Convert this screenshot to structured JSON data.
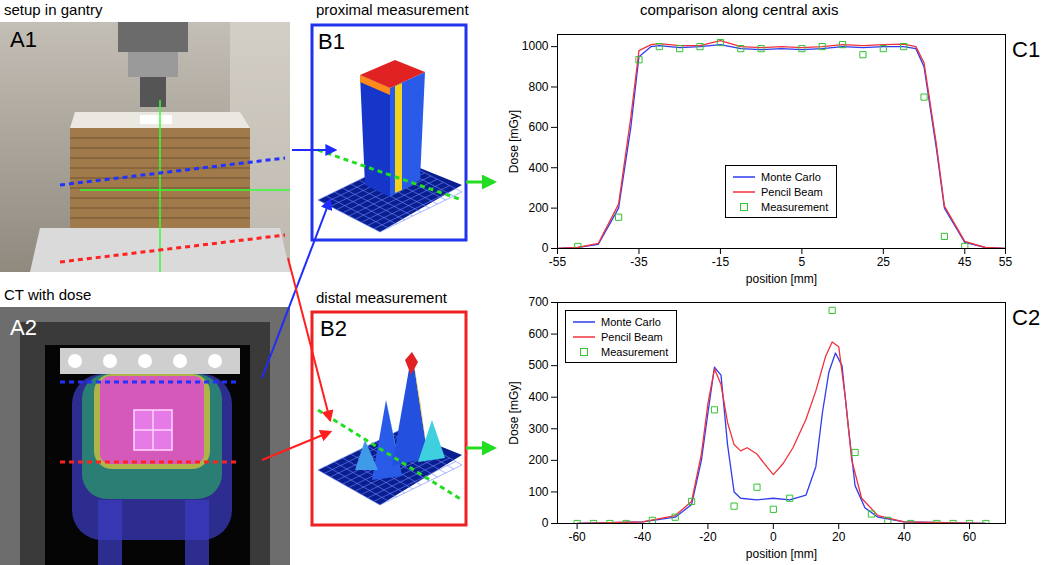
{
  "panels": {
    "A1": {
      "label": "A1",
      "title": "setup in gantry"
    },
    "A2": {
      "label": "A2",
      "title": "CT with dose"
    },
    "B1": {
      "label": "B1",
      "title": "proximal measurement"
    },
    "B2": {
      "label": "B2",
      "title": "distal measurement"
    },
    "C": {
      "title": "comparison along central axis"
    }
  },
  "chart_data": [
    {
      "label": "C1",
      "type": "line",
      "xlabel": "position [mm]",
      "ylabel": "Dose [mGy]",
      "xlim": [
        -55,
        55
      ],
      "xticks": [
        -55,
        -35,
        -15,
        5,
        25,
        45,
        55
      ],
      "ylim": [
        0,
        1060
      ],
      "yticks": [
        0,
        200,
        400,
        600,
        800,
        1000
      ],
      "grid": false,
      "legend": "lower center",
      "series": [
        {
          "name": "Monte Carlo",
          "color": "#2f3cf0",
          "type": "line",
          "line_style": "solid",
          "x": [
            -55,
            -50,
            -45,
            -40,
            -37,
            -35,
            -32,
            -30,
            -25,
            -20,
            -15,
            -10,
            -5,
            0,
            5,
            10,
            15,
            20,
            25,
            30,
            33,
            35,
            38,
            40,
            45,
            50,
            55
          ],
          "values": [
            0,
            5,
            20,
            200,
            600,
            950,
            1000,
            1005,
            995,
            1000,
            1010,
            990,
            985,
            990,
            985,
            990,
            1000,
            995,
            1000,
            1000,
            990,
            900,
            500,
            200,
            30,
            5,
            0
          ]
        },
        {
          "name": "Pencil Beam",
          "color": "#f0323c",
          "type": "line",
          "line_style": "solid",
          "x": [
            -55,
            -50,
            -45,
            -40,
            -37,
            -35,
            -32,
            -30,
            -25,
            -20,
            -15,
            -10,
            -5,
            0,
            5,
            10,
            15,
            20,
            25,
            30,
            33,
            35,
            38,
            40,
            45,
            50,
            55
          ],
          "values": [
            0,
            5,
            25,
            220,
            650,
            980,
            1010,
            1015,
            1005,
            1005,
            1030,
            1000,
            995,
            1000,
            995,
            1000,
            1010,
            1005,
            1010,
            1012,
            1000,
            920,
            520,
            210,
            35,
            5,
            0
          ]
        },
        {
          "name": "Measurement",
          "color": "#33c433",
          "type": "scatter",
          "marker": "square",
          "x": [
            -50,
            -40,
            -35,
            -30,
            -25,
            -20,
            -15,
            -10,
            -5,
            5,
            10,
            15,
            20,
            25,
            30,
            35,
            40,
            45
          ],
          "values": [
            10,
            155,
            935,
            1000,
            990,
            1000,
            1020,
            990,
            990,
            990,
            1000,
            1010,
            960,
            990,
            1000,
            750,
            60,
            10
          ]
        }
      ]
    },
    {
      "label": "C2",
      "type": "line",
      "xlabel": "position [mm]",
      "ylabel": "Dose [mGy]",
      "xlim": [
        -66,
        71
      ],
      "xticks": [
        -60,
        -40,
        -20,
        0,
        20,
        40,
        60
      ],
      "ylim": [
        0,
        700
      ],
      "yticks": [
        0,
        100,
        200,
        300,
        400,
        500,
        600,
        700
      ],
      "grid": false,
      "legend": "upper left",
      "series": [
        {
          "name": "Monte Carlo",
          "color": "#2f3cf0",
          "type": "line",
          "line_style": "solid",
          "x": [
            -60,
            -40,
            -30,
            -25,
            -22,
            -20,
            -18,
            -16,
            -14,
            -12,
            -10,
            -5,
            0,
            5,
            10,
            13,
            15,
            17,
            19,
            21,
            23,
            25,
            28,
            32,
            40,
            65
          ],
          "values": [
            0,
            5,
            20,
            60,
            200,
            350,
            495,
            470,
            250,
            100,
            80,
            75,
            80,
            75,
            90,
            180,
            350,
            480,
            540,
            500,
            300,
            120,
            50,
            20,
            5,
            0
          ]
        },
        {
          "name": "Pencil Beam",
          "color": "#f0323c",
          "type": "line",
          "line_style": "solid",
          "x": [
            -60,
            -40,
            -30,
            -25,
            -22,
            -20,
            -18,
            -16,
            -14,
            -12,
            -10,
            -8,
            -5,
            -2,
            0,
            3,
            6,
            10,
            13,
            16,
            18,
            20,
            22,
            24,
            27,
            32,
            40,
            65
          ],
          "values": [
            0,
            5,
            25,
            70,
            220,
            380,
            490,
            440,
            320,
            250,
            230,
            240,
            220,
            180,
            155,
            190,
            240,
            330,
            420,
            530,
            575,
            560,
            400,
            200,
            80,
            25,
            5,
            0
          ]
        },
        {
          "name": "Measurement",
          "color": "#33c433",
          "type": "scatter",
          "marker": "square",
          "x": [
            -60,
            -55,
            -50,
            -45,
            -37,
            -30,
            -25,
            -18,
            -12,
            -5,
            0,
            5,
            18,
            25,
            30,
            35,
            42,
            50,
            55,
            60,
            65
          ],
          "values": [
            0,
            0,
            0,
            0,
            10,
            20,
            70,
            360,
            55,
            115,
            45,
            80,
            675,
            225,
            30,
            10,
            0,
            0,
            0,
            0,
            0
          ]
        }
      ]
    }
  ]
}
